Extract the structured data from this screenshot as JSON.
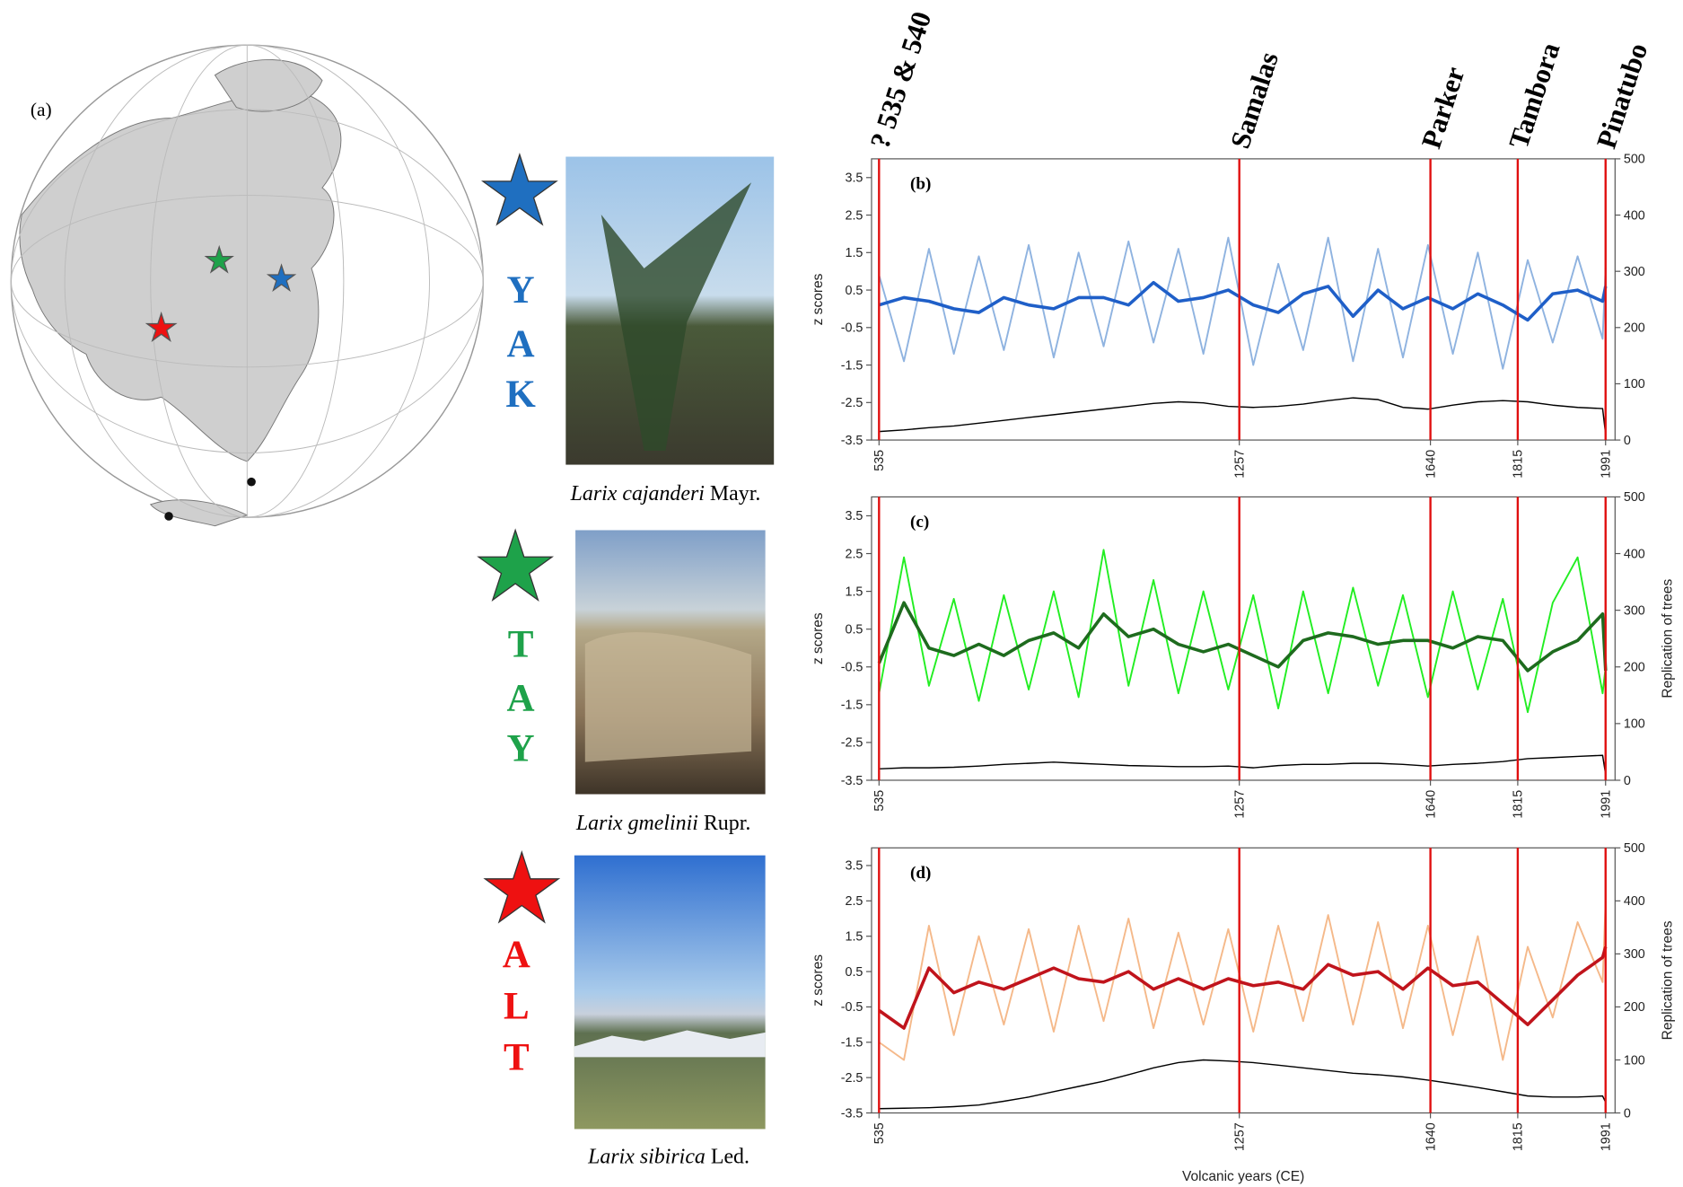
{
  "figure": {
    "panel_label": "(a)",
    "events": [
      {
        "label": "? 535 & 540",
        "year": 535
      },
      {
        "label": "Samalas",
        "year": 1257
      },
      {
        "label": "Parker",
        "year": 1640
      },
      {
        "label": "Tambora",
        "year": 1815
      },
      {
        "label": "Pinatubo",
        "year": 1991
      }
    ],
    "sites": [
      {
        "letters": [
          "Y",
          "A",
          "K"
        ],
        "color": "#1f6fc0",
        "species": "Larix cajanderi",
        "author": "Mayr."
      },
      {
        "letters": [
          "T",
          "A",
          "Y"
        ],
        "color": "#1ea24a",
        "species": "Larix gmelinii",
        "author": "Rupr."
      },
      {
        "letters": [
          "A",
          "L",
          "T"
        ],
        "color": "#ee1111",
        "species": "Larix sibirica",
        "author": "Led."
      }
    ]
  },
  "chart_data": [
    {
      "type": "line",
      "panel_label": "(b)",
      "ylabel": "z scores",
      "x": [
        535,
        585,
        635,
        685,
        735,
        785,
        835,
        885,
        935,
        985,
        1035,
        1085,
        1135,
        1185,
        1235,
        1285,
        1335,
        1385,
        1435,
        1485,
        1535,
        1585,
        1635,
        1685,
        1735,
        1785,
        1835,
        1885,
        1935,
        1985,
        1991
      ],
      "xlim": [
        520,
        2010
      ],
      "xticks": [
        535,
        1257,
        1640,
        1815,
        1991
      ],
      "ylim": [
        -3.5,
        4
      ],
      "yticks": [
        -3.5,
        -2.5,
        -1.5,
        -0.5,
        0.5,
        1.5,
        2.5,
        3.5
      ],
      "y2lim": [
        0,
        500
      ],
      "y2ticks": [
        0,
        100,
        200,
        300,
        400,
        500
      ],
      "series": [
        {
          "color": "#8fb3e0",
          "values": [
            0.9,
            -1.4,
            1.6,
            -1.2,
            1.4,
            -1.1,
            1.7,
            -1.3,
            1.5,
            -1.0,
            1.8,
            -0.9,
            1.6,
            -1.2,
            1.9,
            -1.5,
            1.2,
            -1.1,
            1.9,
            -1.4,
            1.6,
            -1.3,
            1.7,
            -1.2,
            1.5,
            -1.6,
            1.3,
            -0.9,
            1.4,
            -0.8,
            1.1
          ]
        },
        {
          "color": "#1f5fc8",
          "values": [
            0.1,
            0.3,
            0.2,
            0.0,
            -0.1,
            0.3,
            0.1,
            0.0,
            0.3,
            0.3,
            0.1,
            0.7,
            0.2,
            0.3,
            0.5,
            0.1,
            -0.1,
            0.4,
            0.6,
            -0.2,
            0.5,
            0.0,
            0.3,
            0.0,
            0.4,
            0.1,
            -0.3,
            0.4,
            0.5,
            0.2,
            0.6
          ]
        },
        {
          "color": "#000000",
          "axis": "y2",
          "values": [
            15,
            18,
            22,
            25,
            30,
            35,
            40,
            45,
            50,
            55,
            60,
            65,
            68,
            66,
            60,
            58,
            60,
            64,
            70,
            75,
            72,
            58,
            55,
            62,
            68,
            70,
            68,
            62,
            58,
            56,
            10
          ]
        }
      ]
    },
    {
      "type": "line",
      "panel_label": "(c)",
      "ylabel": "z scores",
      "y2label": "Replication of trees",
      "x": [
        535,
        585,
        635,
        685,
        735,
        785,
        835,
        885,
        935,
        985,
        1035,
        1085,
        1135,
        1185,
        1235,
        1285,
        1335,
        1385,
        1435,
        1485,
        1535,
        1585,
        1635,
        1685,
        1735,
        1785,
        1835,
        1885,
        1935,
        1985,
        1991
      ],
      "xlim": [
        520,
        2010
      ],
      "xticks": [
        535,
        1257,
        1640,
        1815,
        1991
      ],
      "ylim": [
        -3.5,
        4
      ],
      "yticks": [
        -3.5,
        -2.5,
        -1.5,
        -0.5,
        0.5,
        1.5,
        2.5,
        3.5
      ],
      "y2lim": [
        0,
        500
      ],
      "y2ticks": [
        0,
        100,
        200,
        300,
        400,
        500
      ],
      "series": [
        {
          "color": "#22ee22",
          "values": [
            -1.2,
            2.4,
            -1.0,
            1.3,
            -1.4,
            1.4,
            -1.1,
            1.5,
            -1.3,
            2.6,
            -1.0,
            1.8,
            -1.2,
            1.5,
            -1.1,
            1.4,
            -1.6,
            1.5,
            -1.2,
            1.6,
            -1.0,
            1.4,
            -1.3,
            1.5,
            -1.1,
            1.3,
            -1.7,
            1.2,
            2.4,
            -1.2,
            -0.5
          ]
        },
        {
          "color": "#1e6b1e",
          "values": [
            -0.4,
            1.2,
            0.0,
            -0.2,
            0.1,
            -0.2,
            0.2,
            0.4,
            0.0,
            0.9,
            0.3,
            0.5,
            0.1,
            -0.1,
            0.1,
            -0.2,
            -0.5,
            0.2,
            0.4,
            0.3,
            0.1,
            0.2,
            0.2,
            0.0,
            0.3,
            0.2,
            -0.6,
            -0.1,
            0.2,
            0.9,
            -0.6
          ]
        },
        {
          "color": "#000000",
          "axis": "y2",
          "values": [
            20,
            22,
            22,
            23,
            25,
            28,
            30,
            32,
            30,
            28,
            26,
            25,
            24,
            24,
            25,
            22,
            26,
            28,
            28,
            30,
            30,
            28,
            25,
            28,
            30,
            33,
            38,
            40,
            42,
            44,
            10
          ]
        }
      ]
    },
    {
      "type": "line",
      "panel_label": "(d)",
      "ylabel": "z scores",
      "y2label": "Replication of trees",
      "xlabel": "Volcanic years (CE)",
      "x": [
        535,
        585,
        635,
        685,
        735,
        785,
        835,
        885,
        935,
        985,
        1035,
        1085,
        1135,
        1185,
        1235,
        1285,
        1335,
        1385,
        1435,
        1485,
        1535,
        1585,
        1635,
        1685,
        1735,
        1785,
        1835,
        1885,
        1935,
        1985,
        1991
      ],
      "xlim": [
        520,
        2010
      ],
      "xticks": [
        535,
        1257,
        1640,
        1815,
        1991
      ],
      "ylim": [
        -3.5,
        4
      ],
      "yticks": [
        -3.5,
        -2.5,
        -1.5,
        -0.5,
        0.5,
        1.5,
        2.5,
        3.5
      ],
      "y2lim": [
        0,
        500
      ],
      "y2ticks": [
        0,
        100,
        200,
        300,
        400,
        500
      ],
      "series": [
        {
          "color": "#f5b98a",
          "values": [
            -1.5,
            -2.0,
            1.8,
            -1.3,
            1.5,
            -1.0,
            1.7,
            -1.2,
            1.8,
            -0.9,
            2.0,
            -1.1,
            1.6,
            -1.0,
            1.7,
            -1.2,
            1.8,
            -0.9,
            2.1,
            -1.0,
            1.9,
            -1.1,
            1.8,
            -1.3,
            1.5,
            -2.0,
            1.2,
            -0.8,
            1.9,
            0.2,
            2.5
          ]
        },
        {
          "color": "#c0141c",
          "values": [
            -0.6,
            -1.1,
            0.6,
            -0.1,
            0.2,
            0.0,
            0.3,
            0.6,
            0.3,
            0.2,
            0.5,
            0.0,
            0.3,
            0.0,
            0.3,
            0.1,
            0.2,
            0.0,
            0.7,
            0.4,
            0.5,
            0.0,
            0.6,
            0.1,
            0.2,
            -0.4,
            -1.0,
            -0.3,
            0.4,
            0.9,
            1.2
          ]
        },
        {
          "color": "#000000",
          "axis": "y2",
          "values": [
            8,
            9,
            10,
            12,
            15,
            22,
            30,
            40,
            50,
            60,
            72,
            85,
            95,
            100,
            98,
            95,
            90,
            85,
            80,
            75,
            72,
            68,
            62,
            55,
            48,
            40,
            32,
            30,
            30,
            32,
            20
          ]
        }
      ]
    }
  ]
}
